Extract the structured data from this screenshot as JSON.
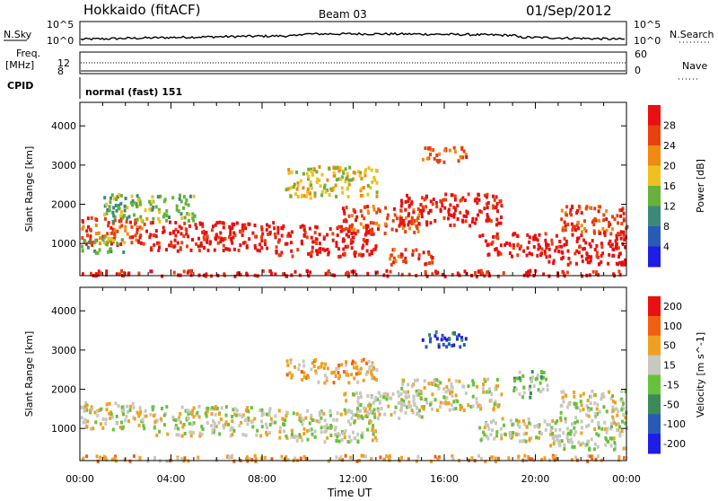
{
  "header": {
    "station": "Hokkaido (fitACF)",
    "beam": "Beam 03",
    "date": "01/Sep/2012"
  },
  "strip_panels": {
    "nsky_label": "N.Sky",
    "nsky_ticks": [
      "10^5",
      "10^0"
    ],
    "nsearch_label": "N.Search",
    "freq_label_line1": "Freq.",
    "freq_label_line2": "[MHz]",
    "freq_ticks": [
      "12",
      "8"
    ],
    "nave_label": "Nave",
    "nave_ticks": [
      "60",
      "0"
    ],
    "cpid_label": "CPID",
    "cpid_text": "normal (fast) 151"
  },
  "chart_data": [
    {
      "type": "heatmap",
      "name": "power-panel",
      "ylabel": "Slant Range [km]",
      "xlabel": "",
      "x_ticks": [
        "00:00",
        "04:00",
        "08:00",
        "12:00",
        "16:00",
        "20:00",
        "00:00"
      ],
      "x_range_hours": [
        0,
        24
      ],
      "y_ticks": [
        1000,
        2000,
        3000,
        4000
      ],
      "y_range_km": [
        180,
        4600
      ],
      "colorbar": {
        "label": "Power [dB]",
        "ticks": [
          4,
          8,
          12,
          16,
          20,
          24,
          28
        ],
        "range": [
          0,
          32
        ],
        "colors": [
          "#1d1de6",
          "#2a5ab8",
          "#3b8a78",
          "#66b23a",
          "#f0c020",
          "#f08a10",
          "#e84010",
          "#e81010"
        ]
      },
      "regions": [
        {
          "t0": 0.0,
          "t1": 3.0,
          "r0": 1000,
          "r1": 1700,
          "level": 6
        },
        {
          "t0": 3.0,
          "t1": 8.5,
          "r0": 850,
          "r1": 1600,
          "level": 7
        },
        {
          "t0": 8.5,
          "t1": 13.0,
          "r0": 700,
          "r1": 1500,
          "level": 7
        },
        {
          "t0": 11.5,
          "t1": 15.0,
          "r0": 1300,
          "r1": 2000,
          "level": 6
        },
        {
          "t0": 14.0,
          "t1": 18.5,
          "r0": 1500,
          "r1": 2300,
          "level": 7
        },
        {
          "t0": 13.5,
          "t1": 15.5,
          "r0": 500,
          "r1": 900,
          "level": 6
        },
        {
          "t0": 17.5,
          "t1": 20.5,
          "r0": 700,
          "r1": 1300,
          "level": 7
        },
        {
          "t0": 20.5,
          "t1": 24.0,
          "r0": 500,
          "r1": 1300,
          "level": 7
        },
        {
          "t0": 21.0,
          "t1": 24.0,
          "r0": 1300,
          "r1": 2000,
          "level": 6
        },
        {
          "t0": 15.0,
          "t1": 17.0,
          "r0": 3100,
          "r1": 3500,
          "level": 6
        },
        {
          "t0": 9.0,
          "t1": 13.0,
          "r0": 2200,
          "r1": 3000,
          "level": 4
        },
        {
          "t0": 1.0,
          "t1": 5.0,
          "r0": 1600,
          "r1": 2300,
          "level": 3
        },
        {
          "t0": 0.0,
          "t1": 2.0,
          "r0": 800,
          "r1": 1200,
          "level": 3
        },
        {
          "t0": 0.0,
          "t1": 24.0,
          "r0": 200,
          "r1": 350,
          "level": 7
        }
      ]
    },
    {
      "type": "heatmap",
      "name": "velocity-panel",
      "ylabel": "Slant Range [km]",
      "xlabel": "Time UT",
      "x_ticks": [
        "00:00",
        "04:00",
        "08:00",
        "12:00",
        "16:00",
        "20:00",
        "00:00"
      ],
      "x_range_hours": [
        0,
        24
      ],
      "y_ticks": [
        1000,
        2000,
        3000,
        4000
      ],
      "y_range_km": [
        180,
        4600
      ],
      "colorbar": {
        "label": "Velocity [m s^-1]",
        "ticks": [
          "200",
          "100",
          "50",
          "15",
          "-15",
          "-50",
          "-100",
          "-200"
        ],
        "colors": [
          "#1d1de6",
          "#2a5ab8",
          "#3b8a58",
          "#66c23a",
          "#c8c8c0",
          "#f0a020",
          "#f06010",
          "#e81010"
        ]
      },
      "regions": [
        {
          "t0": 0.0,
          "t1": 3.0,
          "r0": 1000,
          "r1": 1700,
          "level": 4
        },
        {
          "t0": 3.0,
          "t1": 8.5,
          "r0": 850,
          "r1": 1600,
          "level": 4
        },
        {
          "t0": 8.5,
          "t1": 13.0,
          "r0": 700,
          "r1": 1500,
          "level": 4
        },
        {
          "t0": 11.5,
          "t1": 15.0,
          "r0": 1300,
          "r1": 2000,
          "level": 4
        },
        {
          "t0": 14.0,
          "t1": 18.5,
          "r0": 1500,
          "r1": 2300,
          "level": 4
        },
        {
          "t0": 17.5,
          "t1": 20.5,
          "r0": 700,
          "r1": 1300,
          "level": 4
        },
        {
          "t0": 20.5,
          "t1": 24.0,
          "r0": 500,
          "r1": 1300,
          "level": 4
        },
        {
          "t0": 21.0,
          "t1": 24.0,
          "r0": 1300,
          "r1": 2000,
          "level": 4
        },
        {
          "t0": 15.0,
          "t1": 17.0,
          "r0": 3100,
          "r1": 3500,
          "level": 1
        },
        {
          "t0": 9.0,
          "t1": 13.0,
          "r0": 2200,
          "r1": 2800,
          "level": 5
        },
        {
          "t0": 19.0,
          "t1": 20.5,
          "r0": 1800,
          "r1": 2500,
          "level": 3
        },
        {
          "t0": 0.0,
          "t1": 24.0,
          "r0": 200,
          "r1": 350,
          "level": 5
        }
      ]
    }
  ]
}
